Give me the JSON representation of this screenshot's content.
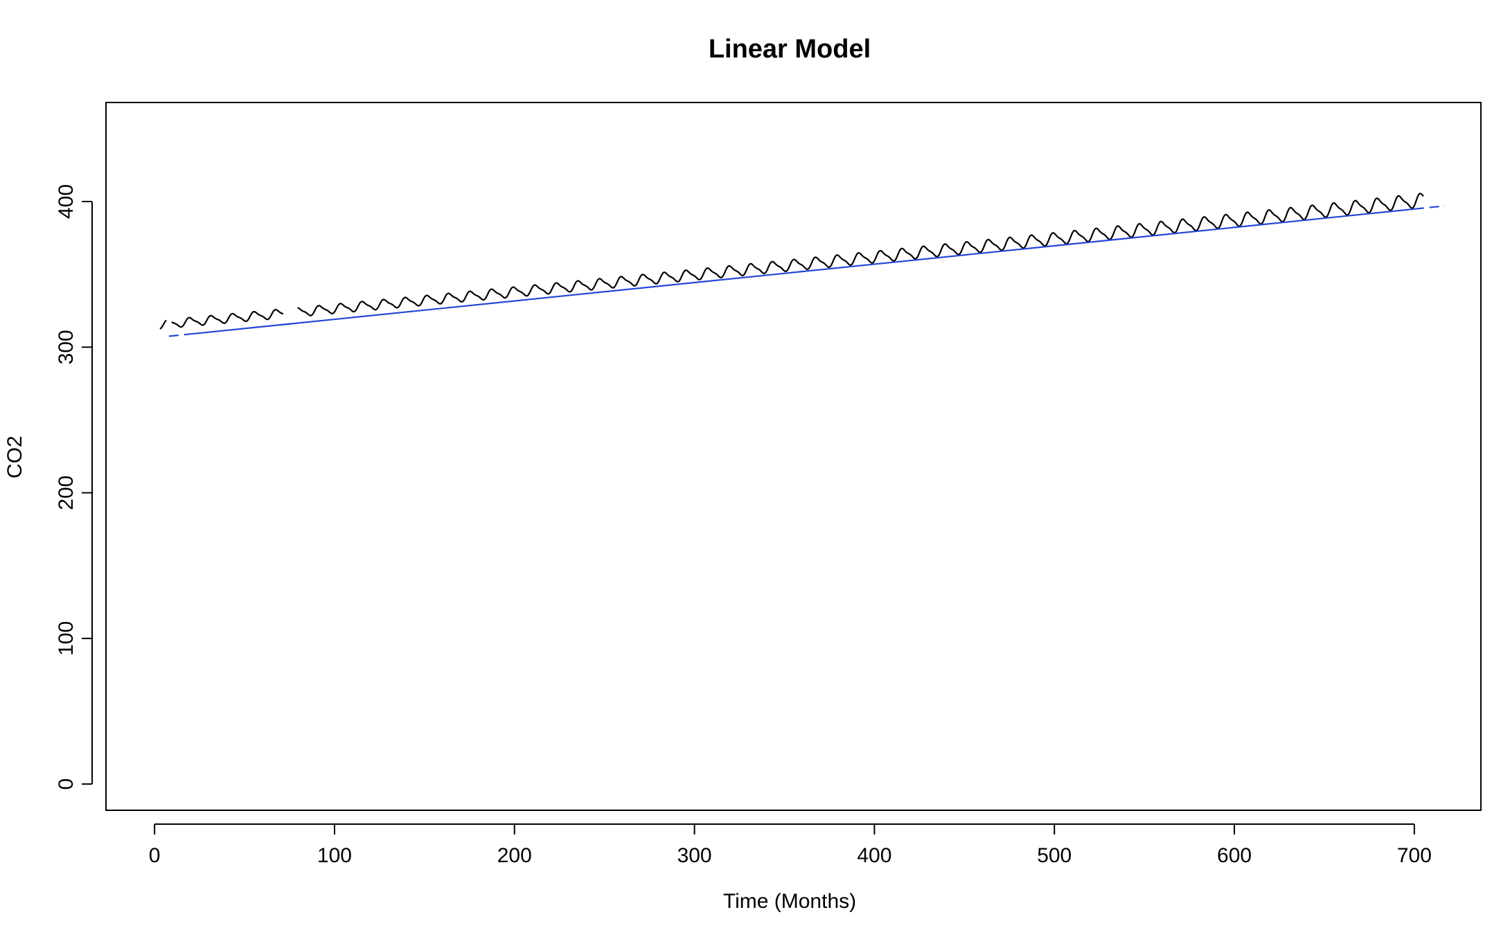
{
  "chart_data": {
    "type": "line",
    "title": "Linear Model",
    "xlabel": "Time (Months)",
    "ylabel": "CO2",
    "xlim": [
      -27,
      737
    ],
    "ylim": [
      -18,
      468
    ],
    "xticks": [
      0,
      100,
      200,
      300,
      400,
      500,
      600,
      700
    ],
    "yticks": [
      0,
      100,
      200,
      300,
      400
    ],
    "grid": false,
    "legend": "none",
    "series": [
      {
        "type": "line",
        "color": "#000000",
        "style": "solid",
        "gaps": [
          [
            7,
            9
          ],
          [
            72,
            79
          ]
        ],
        "trend": {
          "x0": 3,
          "y0": 315.5,
          "x1": 705,
          "y1": 401,
          "curvature": 8
        },
        "seasonal": {
          "period": 12,
          "amplitude_start": 2.6,
          "amplitude_end": 4.2
        }
      },
      {
        "type": "line",
        "color": "#2346d6",
        "style": "dashed-ends",
        "x": [
          8,
          717
        ],
        "y": [
          307.5,
          397
        ],
        "dashed_ranges": [
          [
            8,
            20
          ],
          [
            70,
            80
          ],
          [
            700,
            717
          ]
        ]
      }
    ]
  }
}
